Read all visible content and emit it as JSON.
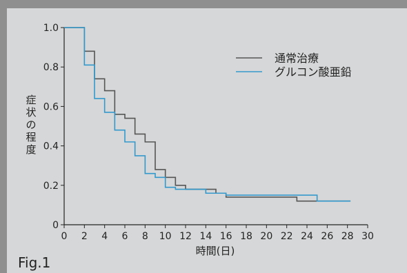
{
  "figure_label": "Fig.1",
  "chart_data": {
    "type": "line",
    "step": true,
    "xlabel": "時間(日)",
    "ylabel": "症状の程度",
    "xlim": [
      0,
      30
    ],
    "ylim": [
      0,
      1.0
    ],
    "x_ticks": [
      "0",
      "2",
      "4",
      "6",
      "8",
      "10",
      "12",
      "14",
      "16",
      "18",
      "20",
      "22",
      "24",
      "26",
      "28",
      "30"
    ],
    "y_ticks": [
      "0",
      "0.2",
      "0.4",
      "0.6",
      "0.8",
      "1.0"
    ],
    "grid": false,
    "legend_position": "top-right",
    "series": [
      {
        "name": "通常治療",
        "color": "#555555",
        "points": [
          [
            0,
            1.0
          ],
          [
            2,
            0.88
          ],
          [
            3,
            0.74
          ],
          [
            4,
            0.68
          ],
          [
            5,
            0.56
          ],
          [
            6,
            0.54
          ],
          [
            7,
            0.46
          ],
          [
            8,
            0.42
          ],
          [
            9,
            0.28
          ],
          [
            10,
            0.24
          ],
          [
            11,
            0.2
          ],
          [
            12,
            0.18
          ],
          [
            14,
            0.18
          ],
          [
            15,
            0.16
          ],
          [
            16,
            0.14
          ],
          [
            23,
            0.12
          ],
          [
            28.3,
            0.12
          ]
        ]
      },
      {
        "name": "グルコン酸亜鉛",
        "color": "#3399cc",
        "points": [
          [
            0,
            1.0
          ],
          [
            2,
            0.81
          ],
          [
            3,
            0.64
          ],
          [
            4,
            0.57
          ],
          [
            5,
            0.48
          ],
          [
            6,
            0.42
          ],
          [
            7,
            0.35
          ],
          [
            8,
            0.26
          ],
          [
            9,
            0.24
          ],
          [
            10,
            0.19
          ],
          [
            11,
            0.18
          ],
          [
            14,
            0.16
          ],
          [
            16,
            0.15
          ],
          [
            25,
            0.12
          ],
          [
            28.3,
            0.12
          ]
        ]
      }
    ]
  }
}
